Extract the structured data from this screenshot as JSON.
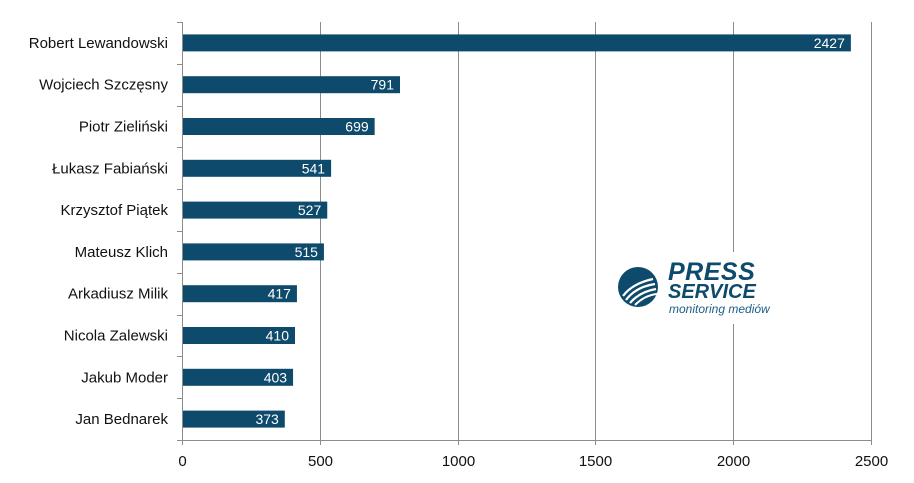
{
  "chart_data": {
    "type": "bar",
    "orientation": "horizontal",
    "categories": [
      "Robert Lewandowski",
      "Wojciech Szczęsny",
      "Piotr Zieliński",
      "Łukasz Fabiański",
      "Krzysztof Piątek",
      "Mateusz Klich",
      "Arkadiusz Milik",
      "Nicola Zalewski",
      "Jakub Moder",
      "Jan Bednarek"
    ],
    "values": [
      2427,
      791,
      699,
      541,
      527,
      515,
      417,
      410,
      403,
      373
    ],
    "data_labels": [
      "2427",
      "791",
      "699",
      "541",
      "527",
      "515",
      "417",
      "410",
      "403",
      "373"
    ],
    "xlim": [
      0,
      2500
    ],
    "x_ticks": [
      "0",
      "500",
      "1000",
      "1500",
      "2000",
      "2500"
    ],
    "x_tick_values": [
      0,
      500,
      1000,
      1500,
      2000,
      2500
    ],
    "grid": "vertical",
    "legend": "none",
    "bar_color": "#0d4a6b"
  },
  "watermark": {
    "line1": "PRESS",
    "line2": "SERVICE",
    "line3": "monitoring mediów"
  }
}
